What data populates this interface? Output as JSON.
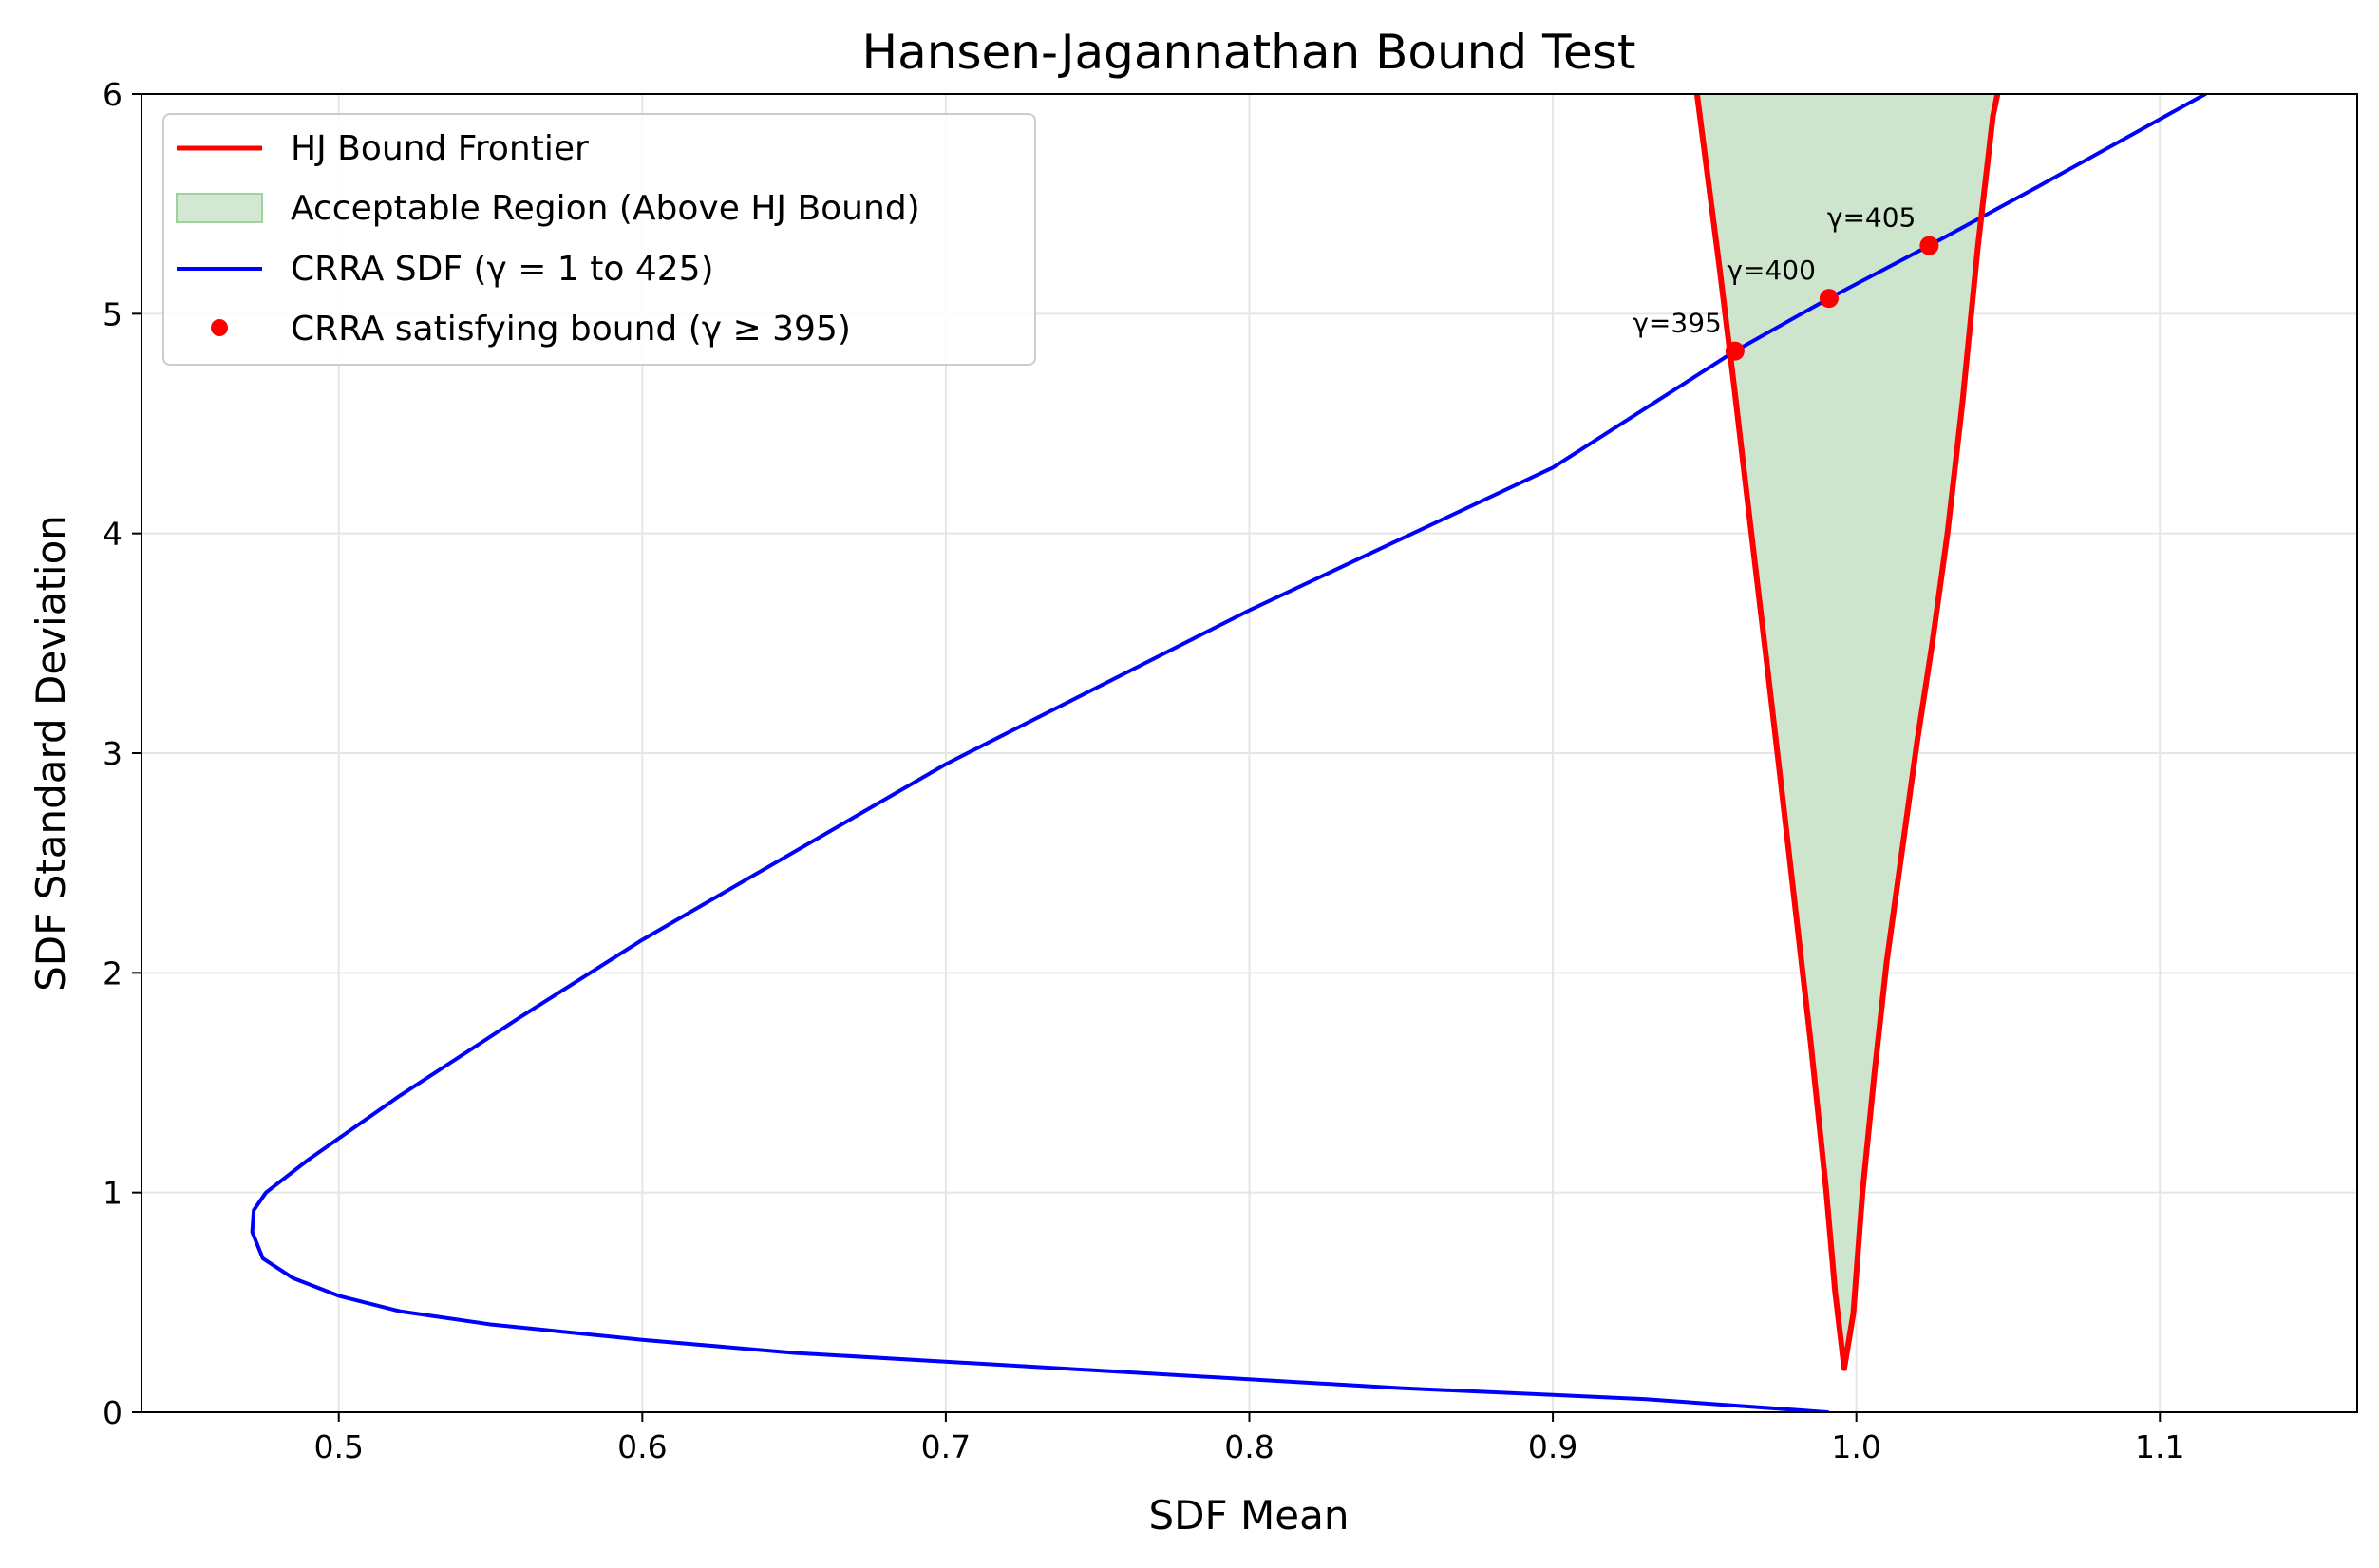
{
  "chart_data": {
    "type": "line",
    "title": "Hansen-Jagannathan Bound Test",
    "xlabel": "SDF Mean",
    "ylabel": "SDF Standard Deviation",
    "xlim": [
      0.435,
      1.165
    ],
    "ylim": [
      0,
      6
    ],
    "xticks": [
      0.5,
      0.6,
      0.7,
      0.8,
      0.9,
      1.0,
      1.1
    ],
    "xtick_labels": [
      "0.5",
      "0.6",
      "0.7",
      "0.8",
      "0.9",
      "1.0",
      "1.1"
    ],
    "yticks": [
      0,
      1,
      2,
      3,
      4,
      5,
      6
    ],
    "ytick_labels": [
      "0",
      "1",
      "2",
      "3",
      "4",
      "5",
      "6"
    ],
    "grid": true,
    "legend_position": "top-left",
    "legend": [
      {
        "label": "HJ Bound Frontier",
        "kind": "line",
        "color": "#ff0000"
      },
      {
        "label": "Acceptable Region (Above HJ Bound)",
        "kind": "patch",
        "color": "#cde5cd"
      },
      {
        "label": "CRRA SDF (γ = 1 to 425)",
        "kind": "line",
        "color": "#0000ff"
      },
      {
        "label": "CRRA satisfying bound (γ ≥ 395)",
        "kind": "marker",
        "color": "#ff0000"
      }
    ],
    "hj_bound": {
      "name": "HJ Bound Frontier",
      "color": "#ff0000",
      "x": [
        0.9475,
        0.955,
        0.96,
        0.965,
        0.97,
        0.975,
        0.98,
        0.985,
        0.99,
        0.993,
        0.996,
        0.999,
        1.002,
        1.006,
        1.01,
        1.015,
        1.02,
        1.025,
        1.03,
        1.035,
        1.04,
        1.045,
        1.0465
      ],
      "y": [
        6.0,
        5.2,
        4.64,
        4.05,
        3.47,
        2.88,
        2.28,
        1.68,
        1.02,
        0.55,
        0.2,
        0.45,
        1.0,
        1.55,
        2.05,
        2.55,
        3.05,
        3.5,
        4.0,
        4.6,
        5.3,
        5.9,
        6.0
      ]
    },
    "acceptable_region": {
      "name": "Acceptable Region (Above HJ Bound)",
      "color": "#cde5cd"
    },
    "crra_sdf": {
      "name": "CRRA SDF (γ = 1 to 425)",
      "color": "#0000ff",
      "x": [
        0.9905,
        0.93,
        0.85,
        0.75,
        0.65,
        0.6,
        0.55,
        0.52,
        0.5,
        0.485,
        0.475,
        0.4715,
        0.472,
        0.476,
        0.49,
        0.52,
        0.56,
        0.6,
        0.7,
        0.8,
        0.9,
        0.96,
        0.991,
        1.024,
        1.06,
        1.115
      ],
      "y": [
        0.0,
        0.06,
        0.11,
        0.19,
        0.27,
        0.33,
        0.4,
        0.46,
        0.53,
        0.61,
        0.7,
        0.82,
        0.92,
        1.0,
        1.15,
        1.44,
        1.8,
        2.15,
        2.95,
        3.65,
        4.3,
        4.83,
        5.07,
        5.31,
        5.58,
        6.0
      ]
    },
    "crra_satisfying_points": {
      "name": "CRRA satisfying bound (γ ≥ 395)",
      "color": "#ff0000",
      "points": [
        {
          "x": 0.96,
          "y": 4.83,
          "label": "γ=395"
        },
        {
          "x": 0.991,
          "y": 5.07,
          "label": "γ=400"
        },
        {
          "x": 1.024,
          "y": 5.31,
          "label": "γ=405"
        }
      ]
    }
  }
}
